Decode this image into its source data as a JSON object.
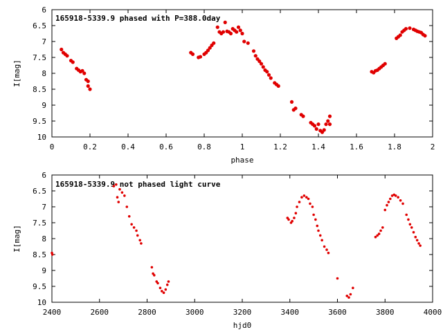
{
  "chart_data": [
    {
      "type": "scatter",
      "title": "165918-5339.9 phased with P=388.0day",
      "xlabel": "phase",
      "ylabel": "I[mag]",
      "xlim": [
        0,
        2
      ],
      "ylim": [
        10,
        6
      ],
      "y_inverted": true,
      "xticks": [
        "0",
        "0.2",
        "0.4",
        "0.6",
        "0.8",
        "1",
        "1.2",
        "1.4",
        "1.6",
        "1.8",
        "2"
      ],
      "yticks": [
        "6",
        "6.5",
        "7",
        "7.5",
        "8",
        "8.5",
        "9",
        "9.5",
        "10"
      ],
      "grid": false,
      "marker_color": "#e00000",
      "series": [
        {
          "points": [
            [
              0.05,
              7.25
            ],
            [
              0.06,
              7.35
            ],
            [
              0.07,
              7.4
            ],
            [
              0.08,
              7.45
            ],
            [
              0.1,
              7.6
            ],
            [
              0.11,
              7.65
            ],
            [
              0.13,
              7.85
            ],
            [
              0.14,
              7.9
            ],
            [
              0.15,
              7.95
            ],
            [
              0.16,
              7.92
            ],
            [
              0.17,
              8.0
            ],
            [
              0.18,
              8.2
            ],
            [
              0.19,
              8.25
            ],
            [
              0.19,
              8.4
            ],
            [
              0.2,
              8.5
            ],
            [
              0.73,
              7.35
            ],
            [
              0.74,
              7.4
            ],
            [
              0.77,
              7.5
            ],
            [
              0.78,
              7.48
            ],
            [
              0.8,
              7.4
            ],
            [
              0.81,
              7.35
            ],
            [
              0.82,
              7.28
            ],
            [
              0.83,
              7.2
            ],
            [
              0.84,
              7.12
            ],
            [
              0.85,
              7.05
            ],
            [
              0.87,
              6.55
            ],
            [
              0.88,
              6.7
            ],
            [
              0.89,
              6.75
            ],
            [
              0.9,
              6.7
            ],
            [
              0.91,
              6.4
            ],
            [
              0.92,
              6.68
            ],
            [
              0.93,
              6.7
            ],
            [
              0.94,
              6.75
            ],
            [
              0.95,
              6.6
            ],
            [
              0.96,
              6.65
            ],
            [
              0.97,
              6.7
            ],
            [
              0.98,
              6.55
            ],
            [
              0.99,
              6.65
            ],
            [
              1.0,
              6.75
            ],
            [
              1.01,
              7.0
            ],
            [
              1.03,
              7.05
            ],
            [
              1.06,
              7.3
            ],
            [
              1.07,
              7.45
            ],
            [
              1.08,
              7.55
            ],
            [
              1.09,
              7.62
            ],
            [
              1.1,
              7.7
            ],
            [
              1.11,
              7.8
            ],
            [
              1.12,
              7.9
            ],
            [
              1.13,
              7.95
            ],
            [
              1.14,
              8.05
            ],
            [
              1.15,
              8.15
            ],
            [
              1.17,
              8.3
            ],
            [
              1.18,
              8.35
            ],
            [
              1.19,
              8.4
            ],
            [
              1.26,
              8.9
            ],
            [
              1.27,
              9.15
            ],
            [
              1.28,
              9.1
            ],
            [
              1.31,
              9.3
            ],
            [
              1.32,
              9.35
            ],
            [
              1.36,
              9.55
            ],
            [
              1.37,
              9.6
            ],
            [
              1.38,
              9.65
            ],
            [
              1.39,
              9.75
            ],
            [
              1.4,
              9.6
            ],
            [
              1.41,
              9.8
            ],
            [
              1.42,
              9.85
            ],
            [
              1.43,
              9.78
            ],
            [
              1.44,
              9.6
            ],
            [
              1.45,
              9.5
            ],
            [
              1.46,
              9.35
            ],
            [
              1.46,
              9.6
            ],
            [
              1.68,
              7.95
            ],
            [
              1.69,
              7.98
            ],
            [
              1.7,
              7.92
            ],
            [
              1.71,
              7.9
            ],
            [
              1.72,
              7.85
            ],
            [
              1.73,
              7.8
            ],
            [
              1.74,
              7.75
            ],
            [
              1.75,
              7.7
            ],
            [
              1.81,
              6.9
            ],
            [
              1.82,
              6.85
            ],
            [
              1.83,
              6.8
            ],
            [
              1.84,
              6.7
            ],
            [
              1.85,
              6.65
            ],
            [
              1.86,
              6.6
            ],
            [
              1.88,
              6.58
            ],
            [
              1.9,
              6.62
            ],
            [
              1.91,
              6.65
            ],
            [
              1.92,
              6.68
            ],
            [
              1.93,
              6.7
            ],
            [
              1.94,
              6.72
            ],
            [
              1.95,
              6.78
            ],
            [
              1.96,
              6.82
            ]
          ]
        }
      ]
    },
    {
      "type": "scatter",
      "title": "165918-5339.9 not phased light curve",
      "xlabel": "hjd0",
      "ylabel": "I[mag]",
      "xlim": [
        2400,
        4000
      ],
      "ylim": [
        10,
        6
      ],
      "y_inverted": true,
      "xticks": [
        "2400",
        "2600",
        "2800",
        "3000",
        "3200",
        "3400",
        "3600",
        "3800",
        "4000"
      ],
      "yticks": [
        "6",
        "6.5",
        "7",
        "7.5",
        "8",
        "8.5",
        "9",
        "9.5",
        "10"
      ],
      "grid": false,
      "marker_color": "#e00000",
      "series": [
        {
          "points": [
            [
              2400,
              8.45
            ],
            [
              2402,
              8.5
            ],
            [
              2660,
              6.35
            ],
            [
              2670,
              6.3
            ],
            [
              2675,
              6.7
            ],
            [
              2680,
              6.85
            ],
            [
              2685,
              6.45
            ],
            [
              2695,
              6.55
            ],
            [
              2705,
              6.65
            ],
            [
              2715,
              7.0
            ],
            [
              2725,
              7.3
            ],
            [
              2735,
              7.55
            ],
            [
              2745,
              7.65
            ],
            [
              2755,
              7.75
            ],
            [
              2760,
              7.9
            ],
            [
              2770,
              8.05
            ],
            [
              2775,
              8.15
            ],
            [
              2820,
              8.9
            ],
            [
              2825,
              9.1
            ],
            [
              2830,
              9.15
            ],
            [
              2840,
              9.35
            ],
            [
              2845,
              9.4
            ],
            [
              2855,
              9.55
            ],
            [
              2862,
              9.65
            ],
            [
              2870,
              9.7
            ],
            [
              2878,
              9.6
            ],
            [
              2885,
              9.45
            ],
            [
              2890,
              9.35
            ],
            [
              3390,
              7.35
            ],
            [
              3395,
              7.4
            ],
            [
              3405,
              7.5
            ],
            [
              3410,
              7.45
            ],
            [
              3418,
              7.35
            ],
            [
              3425,
              7.2
            ],
            [
              3430,
              7.0
            ],
            [
              3440,
              6.85
            ],
            [
              3450,
              6.7
            ],
            [
              3460,
              6.65
            ],
            [
              3470,
              6.7
            ],
            [
              3478,
              6.75
            ],
            [
              3485,
              6.9
            ],
            [
              3495,
              7.0
            ],
            [
              3500,
              7.25
            ],
            [
              3508,
              7.4
            ],
            [
              3515,
              7.6
            ],
            [
              3520,
              7.75
            ],
            [
              3528,
              7.9
            ],
            [
              3535,
              8.05
            ],
            [
              3545,
              8.25
            ],
            [
              3555,
              8.35
            ],
            [
              3562,
              8.45
            ],
            [
              3600,
              9.25
            ],
            [
              3640,
              9.8
            ],
            [
              3648,
              9.85
            ],
            [
              3655,
              9.75
            ],
            [
              3665,
              9.55
            ],
            [
              3760,
              7.95
            ],
            [
              3768,
              7.9
            ],
            [
              3775,
              7.85
            ],
            [
              3782,
              7.75
            ],
            [
              3790,
              7.65
            ],
            [
              3800,
              7.1
            ],
            [
              3808,
              6.95
            ],
            [
              3815,
              6.85
            ],
            [
              3822,
              6.75
            ],
            [
              3830,
              6.65
            ],
            [
              3838,
              6.62
            ],
            [
              3845,
              6.65
            ],
            [
              3855,
              6.7
            ],
            [
              3865,
              6.8
            ],
            [
              3875,
              6.9
            ],
            [
              3890,
              7.25
            ],
            [
              3898,
              7.4
            ],
            [
              3905,
              7.55
            ],
            [
              3912,
              7.65
            ],
            [
              3920,
              7.8
            ],
            [
              3928,
              7.95
            ],
            [
              3935,
              8.05
            ],
            [
              3942,
              8.15
            ],
            [
              3948,
              8.22
            ]
          ]
        }
      ]
    }
  ]
}
